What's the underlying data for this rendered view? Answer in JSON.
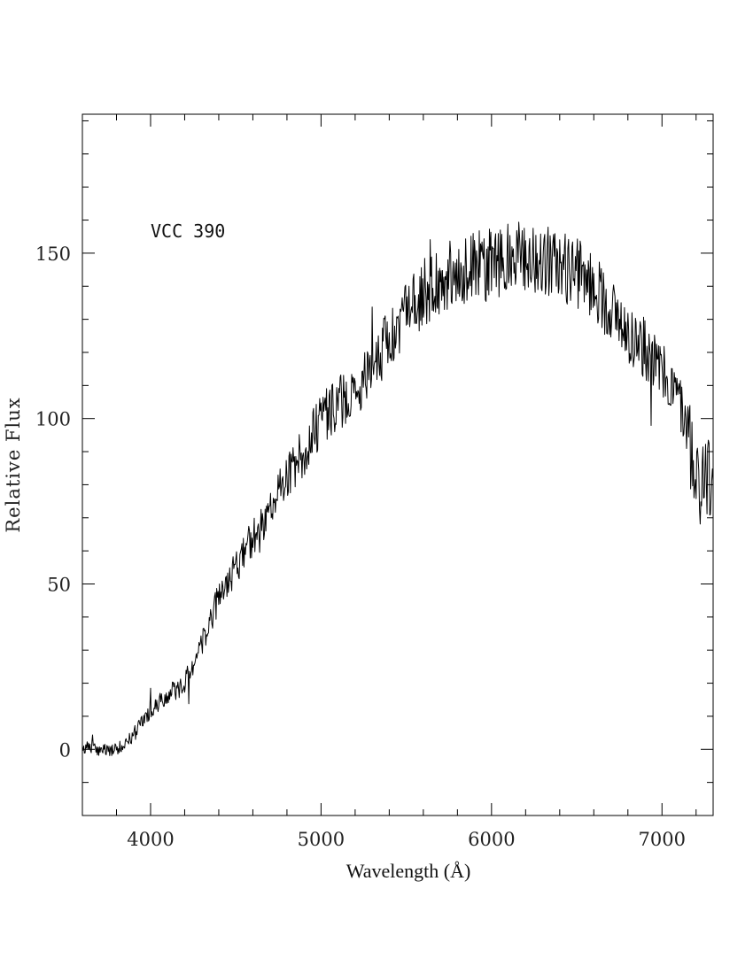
{
  "chart_data": {
    "type": "line",
    "annotation": "VCC 390",
    "xlabel": "Wavelength (Å)",
    "ylabel": "Relative Flux",
    "xlim": [
      3600,
      7300
    ],
    "ylim": [
      -20,
      192
    ],
    "x_ticks": [
      4000,
      5000,
      6000,
      7000
    ],
    "y_ticks": [
      0,
      50,
      100,
      150
    ],
    "x_tick_labels": [
      "4000",
      "5000",
      "6000",
      "7000"
    ],
    "y_tick_labels": [
      "0",
      "50",
      "100",
      "150"
    ],
    "grid": false,
    "line_color": "#000000",
    "series": [
      {
        "x": [
          3600,
          3700,
          3800,
          3900,
          4000,
          4100,
          4200,
          4300,
          4400,
          4500,
          4600,
          4700,
          4800,
          4900,
          5000,
          5100,
          5200,
          5300,
          5400,
          5500,
          5600,
          5700,
          5800,
          5900,
          6000,
          6100,
          6200,
          6300,
          6400,
          6500,
          6600,
          6700,
          6800,
          6900,
          7000,
          7100,
          7200,
          7300
        ],
        "y": [
          1,
          0,
          0,
          4,
          12,
          16,
          20,
          32,
          47,
          55,
          64,
          72,
          83,
          90,
          100,
          105,
          107,
          115,
          125,
          132,
          138,
          141,
          145,
          146,
          147,
          148,
          149,
          148,
          146,
          144,
          140,
          133,
          126,
          121,
          114,
          106,
          85,
          80
        ]
      }
    ]
  }
}
